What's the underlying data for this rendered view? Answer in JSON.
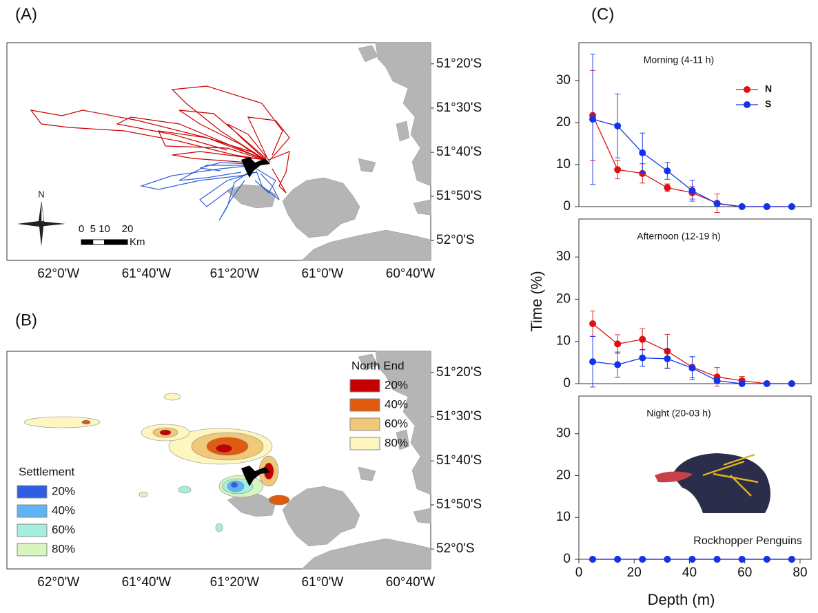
{
  "chart_data": [
    {
      "type": "map",
      "panel_label": "(A)",
      "xlim": [
        -62.195,
        -60.59
      ],
      "ylim": [
        -52.075,
        -51.253
      ],
      "xticks": [
        {
          "value": -62,
          "label": "62°0'W"
        },
        {
          "value": -61.667,
          "label": "61°40'W"
        },
        {
          "value": -61.333,
          "label": "61°20'W"
        },
        {
          "value": -61,
          "label": "61°0'W"
        },
        {
          "value": -60.667,
          "label": "60°40'W"
        }
      ],
      "yticks": [
        {
          "value": -51.333,
          "label": "51°20'S"
        },
        {
          "value": -51.5,
          "label": "51°30'S"
        },
        {
          "value": -51.667,
          "label": "51°40'S"
        },
        {
          "value": -51.833,
          "label": "51°50'S"
        },
        {
          "value": -52,
          "label": "52°0'S"
        }
      ],
      "north": "N",
      "scale_ticks": [
        0,
        5,
        10,
        20
      ],
      "scale_unit": "Km"
    },
    {
      "type": "map",
      "panel_label": "(B)",
      "xlim": [
        -62.195,
        -60.59
      ],
      "ylim": [
        -52.075,
        -51.253
      ],
      "xticks": [
        {
          "value": -62,
          "label": "62°0'W"
        },
        {
          "value": -61.667,
          "label": "61°40'W"
        },
        {
          "value": -61.333,
          "label": "61°20'W"
        },
        {
          "value": -61,
          "label": "61°0'W"
        },
        {
          "value": -60.667,
          "label": "60°40'W"
        }
      ],
      "yticks": [
        {
          "value": -51.333,
          "label": "51°20'S"
        },
        {
          "value": -51.5,
          "label": "51°30'S"
        },
        {
          "value": -51.667,
          "label": "51°40'S"
        },
        {
          "value": -51.833,
          "label": "51°50'S"
        },
        {
          "value": -52,
          "label": "52°0'S"
        }
      ],
      "legends": [
        {
          "title": "North End",
          "items": [
            {
              "label": "20%",
              "color": "#c40000"
            },
            {
              "label": "40%",
              "color": "#e05a10"
            },
            {
              "label": "60%",
              "color": "#f0c878"
            },
            {
              "label": "80%",
              "color": "#fdf6c0"
            }
          ]
        },
        {
          "title": "Settlement",
          "items": [
            {
              "label": "20%",
              "color": "#2f5fe0"
            },
            {
              "label": "40%",
              "color": "#5cb4f5"
            },
            {
              "label": "60%",
              "color": "#a4f0dc"
            },
            {
              "label": "80%",
              "color": "#d8f5c0"
            }
          ]
        }
      ]
    },
    {
      "type": "line",
      "panel_label": "(C)",
      "title": "Morning (4-11 h)",
      "x": [
        5,
        14,
        23,
        32,
        41,
        50,
        59,
        68,
        77
      ],
      "xlim": [
        0,
        84
      ],
      "ylim": [
        0,
        39
      ],
      "yticks": [
        0,
        10,
        20,
        30
      ],
      "series": [
        {
          "name": "N",
          "color": "#dd1111",
          "values": [
            21.7,
            8.8,
            7.9,
            4.5,
            3.3,
            0.8,
            0,
            0,
            0
          ],
          "errors": [
            10.7,
            2.2,
            2.3,
            0.9,
            1.5,
            2.2,
            0,
            0,
            0
          ]
        },
        {
          "name": "S",
          "color": "#1133ee",
          "values": [
            20.8,
            19.2,
            12.8,
            8.5,
            3.8,
            0.7,
            0,
            0,
            0
          ],
          "errors": [
            15.5,
            7.6,
            4.7,
            2.0,
            2.5,
            0.5,
            0,
            0,
            0
          ]
        }
      ]
    },
    {
      "type": "line",
      "title": "Afternoon (12-19 h)",
      "y_label": "Time (%)",
      "x": [
        5,
        14,
        23,
        32,
        41,
        50,
        59,
        68,
        77
      ],
      "xlim": [
        0,
        84
      ],
      "ylim": [
        0,
        39
      ],
      "yticks": [
        0,
        10,
        20,
        30
      ],
      "series": [
        {
          "color": "#dd1111",
          "values": [
            14.2,
            9.4,
            10.5,
            7.7,
            3.9,
            1.6,
            0.7,
            0,
            0
          ],
          "errors": [
            3.0,
            2.2,
            2.5,
            4.0,
            2.5,
            2.2,
            1.0,
            0,
            0
          ]
        },
        {
          "color": "#1133ee",
          "values": [
            5.2,
            4.5,
            6.1,
            5.9,
            3.7,
            0.7,
            0,
            0,
            0
          ],
          "errors": [
            6.0,
            3.0,
            2.0,
            2.3,
            2.7,
            0.5,
            0,
            0,
            0
          ]
        }
      ]
    },
    {
      "type": "line",
      "title": "Night (20-03 h)",
      "x_label": "Depth (m)",
      "annotation": "Rockhopper Penguins",
      "x": [
        5,
        14,
        23,
        32,
        41,
        50,
        59,
        68,
        77
      ],
      "xlim": [
        0,
        84
      ],
      "ylim": [
        0,
        39
      ],
      "yticks": [
        0,
        10,
        20,
        30
      ],
      "xticks": [
        0,
        20,
        40,
        60,
        80
      ],
      "series": [
        {
          "color": "#dd1111",
          "values": [
            0,
            0,
            0,
            0,
            0,
            0,
            0,
            0,
            0
          ],
          "errors": [
            0,
            0,
            0,
            0,
            0,
            0,
            0,
            0,
            0
          ]
        },
        {
          "color": "#1133ee",
          "values": [
            0,
            0,
            0,
            0,
            0,
            0,
            0,
            0,
            0
          ],
          "errors": [
            0,
            0,
            0,
            0,
            0,
            0,
            0,
            0,
            0
          ]
        }
      ]
    }
  ]
}
